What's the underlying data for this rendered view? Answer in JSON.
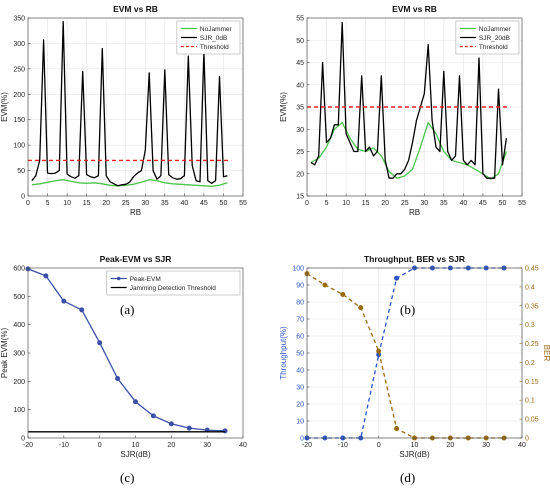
{
  "captions": [
    "(a)",
    "(b)",
    "(c)",
    "(d)"
  ],
  "chart_data": [
    {
      "type": "line",
      "title": "EVM vs RB",
      "xlabel": "RB",
      "ylabel": "EVM(%)",
      "xlim": [
        0,
        55
      ],
      "ylim": [
        0,
        350
      ],
      "xticks": [
        "0",
        "5",
        "10",
        "15",
        "20",
        "25",
        "30",
        "35",
        "40",
        "45",
        "50",
        "55"
      ],
      "yticks": [
        "0",
        "50",
        "100",
        "150",
        "200",
        "250",
        "300",
        "350"
      ],
      "grid": true,
      "legend": "top-right",
      "series": [
        {
          "name": "NoJammer",
          "color": "#4cc44c",
          "x": [
            1,
            3,
            5,
            7,
            9,
            11,
            13,
            15,
            17,
            19,
            21,
            23,
            25,
            27,
            29,
            31,
            33,
            35,
            37,
            39,
            41,
            43,
            45,
            47,
            49,
            51
          ],
          "y": [
            22,
            24,
            27,
            30,
            32,
            29,
            26,
            25,
            26,
            24,
            21,
            20,
            21,
            23,
            27,
            32,
            30,
            26,
            24,
            23,
            22,
            21,
            20,
            19,
            21,
            26
          ]
        },
        {
          "name": "SJR_0dB",
          "color": "#000000",
          "x": [
            1,
            2,
            3,
            4,
            5,
            6,
            7,
            8,
            9,
            10,
            11,
            12,
            13,
            14,
            15,
            16,
            17,
            18,
            19,
            20,
            21,
            22,
            23,
            24,
            25,
            26,
            27,
            28,
            29,
            30,
            31,
            32,
            33,
            34,
            35,
            36,
            37,
            38,
            39,
            40,
            41,
            42,
            43,
            44,
            45,
            46,
            47,
            48,
            49,
            50,
            51
          ],
          "y": [
            30,
            40,
            70,
            307,
            45,
            44,
            45,
            50,
            343,
            43,
            38,
            35,
            40,
            245,
            42,
            38,
            36,
            40,
            290,
            40,
            28,
            24,
            20,
            22,
            23,
            27,
            38,
            45,
            50,
            90,
            242,
            50,
            33,
            40,
            248,
            42,
            36,
            33,
            34,
            40,
            275,
            60,
            30,
            28,
            285,
            30,
            25,
            30,
            235,
            38,
            40
          ]
        },
        {
          "name": "Threshold",
          "color": "#e82020",
          "dashed": true,
          "x": [
            0,
            52
          ],
          "y": [
            70,
            70
          ]
        }
      ]
    },
    {
      "type": "line",
      "title": "EVM vs RB",
      "xlabel": "RB",
      "ylabel": "EVM(%)",
      "xlim": [
        0,
        55
      ],
      "ylim": [
        15,
        55
      ],
      "xticks": [
        "0",
        "5",
        "10",
        "15",
        "20",
        "25",
        "30",
        "35",
        "40",
        "45",
        "50",
        "55"
      ],
      "yticks": [
        "15",
        "20",
        "25",
        "30",
        "35",
        "40",
        "45",
        "50",
        "55"
      ],
      "grid": true,
      "legend": "top-right",
      "series": [
        {
          "name": "NoJammer",
          "color": "#4cc44c",
          "x": [
            1,
            3,
            5,
            7,
            9,
            11,
            13,
            15,
            17,
            19,
            21,
            23,
            25,
            27,
            29,
            31,
            33,
            35,
            37,
            39,
            41,
            43,
            45,
            47,
            49,
            51
          ],
          "y": [
            22.5,
            23.5,
            26,
            30,
            31.5,
            28,
            25.5,
            25,
            25.8,
            24,
            20.5,
            19,
            19.5,
            21,
            26,
            31.5,
            29,
            25,
            23,
            22.5,
            22,
            21,
            20,
            18.8,
            20,
            25
          ]
        },
        {
          "name": "SJR_20dB",
          "color": "#000000",
          "x": [
            1,
            2,
            3,
            4,
            5,
            6,
            7,
            8,
            9,
            10,
            11,
            12,
            13,
            14,
            15,
            16,
            17,
            18,
            19,
            20,
            21,
            22,
            23,
            24,
            25,
            26,
            27,
            28,
            29,
            30,
            31,
            32,
            33,
            34,
            35,
            36,
            37,
            38,
            39,
            40,
            41,
            42,
            43,
            44,
            45,
            46,
            47,
            48,
            49,
            50,
            51
          ],
          "y": [
            22.5,
            22,
            24,
            45,
            27,
            28,
            31,
            31,
            54,
            29,
            27,
            25,
            25,
            42,
            25,
            26,
            24,
            25,
            42,
            23,
            19,
            19,
            20,
            20,
            21,
            23,
            27,
            32,
            35,
            38,
            49,
            32,
            26,
            25,
            43,
            25,
            23,
            24,
            42,
            23,
            22,
            23,
            22,
            46,
            20,
            19,
            19,
            19,
            39,
            22,
            28
          ]
        },
        {
          "name": "Threshold",
          "color": "#e82020",
          "dashed": true,
          "x": [
            0,
            52
          ],
          "y": [
            35,
            35
          ]
        }
      ]
    },
    {
      "type": "line",
      "title": "Peak-EVM vs SJR",
      "xlabel": "SJR(dB)",
      "ylabel": "Peak EVM(%)",
      "xlim": [
        -20,
        40
      ],
      "ylim": [
        0,
        600
      ],
      "xticks": [
        "-20",
        "-10",
        "0",
        "10",
        "20",
        "30",
        "40"
      ],
      "yticks": [
        "0",
        "100",
        "200",
        "300",
        "400",
        "500",
        "600"
      ],
      "grid": false,
      "legend": "top-right",
      "series": [
        {
          "name": "Peak-EVM",
          "color": "#3a4fa8",
          "markers": true,
          "x": [
            -20,
            -15,
            -10,
            -5,
            0,
            5,
            10,
            15,
            20,
            25,
            30,
            35
          ],
          "y": [
            597,
            572,
            483,
            452,
            336,
            210,
            128,
            78,
            50,
            35,
            28,
            25
          ]
        },
        {
          "name": "Jamming Detection Threshold",
          "color": "#000000",
          "x": [
            -20,
            35
          ],
          "y": [
            22,
            22
          ]
        }
      ]
    },
    {
      "type": "line",
      "title": "Throughput, BER vs SJR",
      "xlabel": "SJR(dB)",
      "ylabel": "Throughput(%)",
      "y2label": "BER",
      "xlim": [
        -20,
        40
      ],
      "ylim": [
        0,
        100
      ],
      "y2lim": [
        0,
        0.45
      ],
      "xticks": [
        "-20",
        "-10",
        "0",
        "10",
        "20",
        "30",
        "40"
      ],
      "yticks": [
        "0",
        "10",
        "20",
        "30",
        "40",
        "50",
        "60",
        "70",
        "80",
        "90",
        "100"
      ],
      "y2ticks": [
        "0",
        "0.05",
        "0.1",
        "0.15",
        "0.2",
        "0.25",
        "0.3",
        "0.35",
        "0.4",
        "0.45"
      ],
      "grid": true,
      "series": [
        {
          "name": "Throughput",
          "color": "#2a55c8",
          "dashed": true,
          "markers": true,
          "axis": "left",
          "x": [
            -20,
            -15,
            -10,
            -5,
            0,
            5,
            10,
            15,
            20,
            25,
            30,
            35
          ],
          "y": [
            0,
            0,
            0,
            0,
            49,
            94,
            100,
            100,
            100,
            100,
            100,
            100
          ]
        },
        {
          "name": "BER",
          "color": "#9a6a12",
          "dashed": true,
          "markers": true,
          "axis": "right",
          "x": [
            -20,
            -15,
            -10,
            -5,
            0,
            5,
            10,
            15,
            20,
            25,
            30,
            35
          ],
          "y": [
            0.435,
            0.405,
            0.38,
            0.345,
            0.23,
            0.025,
            0,
            0,
            0,
            0,
            0,
            0
          ]
        }
      ]
    }
  ]
}
